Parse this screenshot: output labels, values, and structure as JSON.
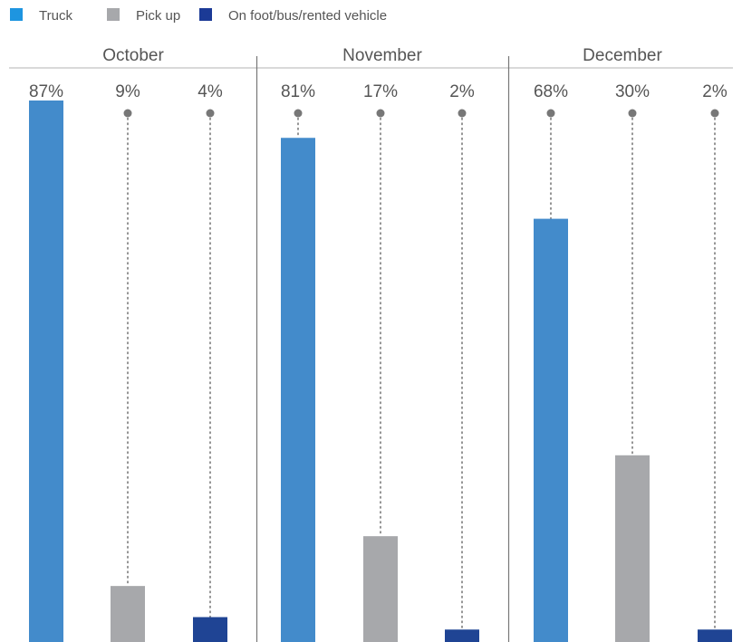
{
  "chart_data": {
    "type": "bar",
    "categories": [
      "October",
      "November",
      "December"
    ],
    "series": [
      {
        "name": "Truck",
        "color": "#438bcb",
        "legend_color": "#1e95e0",
        "values": [
          87,
          81,
          68
        ]
      },
      {
        "name": "Pick up",
        "color": "#a7a8ab",
        "legend_color": "#a7a8ab",
        "values": [
          9,
          17,
          30
        ]
      },
      {
        "name": "On foot/bus/rented vehicle",
        "color": "#1f4494",
        "legend_color": "#1b3a96",
        "values": [
          4,
          2,
          2
        ]
      }
    ],
    "value_labels": [
      [
        "87%",
        "9%",
        "4%"
      ],
      [
        "81%",
        "17%",
        "2%"
      ],
      [
        "68%",
        "30%",
        "2%"
      ]
    ],
    "ylim": [
      0,
      87
    ],
    "title": "",
    "xlabel": "",
    "ylabel": "",
    "legend_position": "top-left",
    "grid": false
  }
}
